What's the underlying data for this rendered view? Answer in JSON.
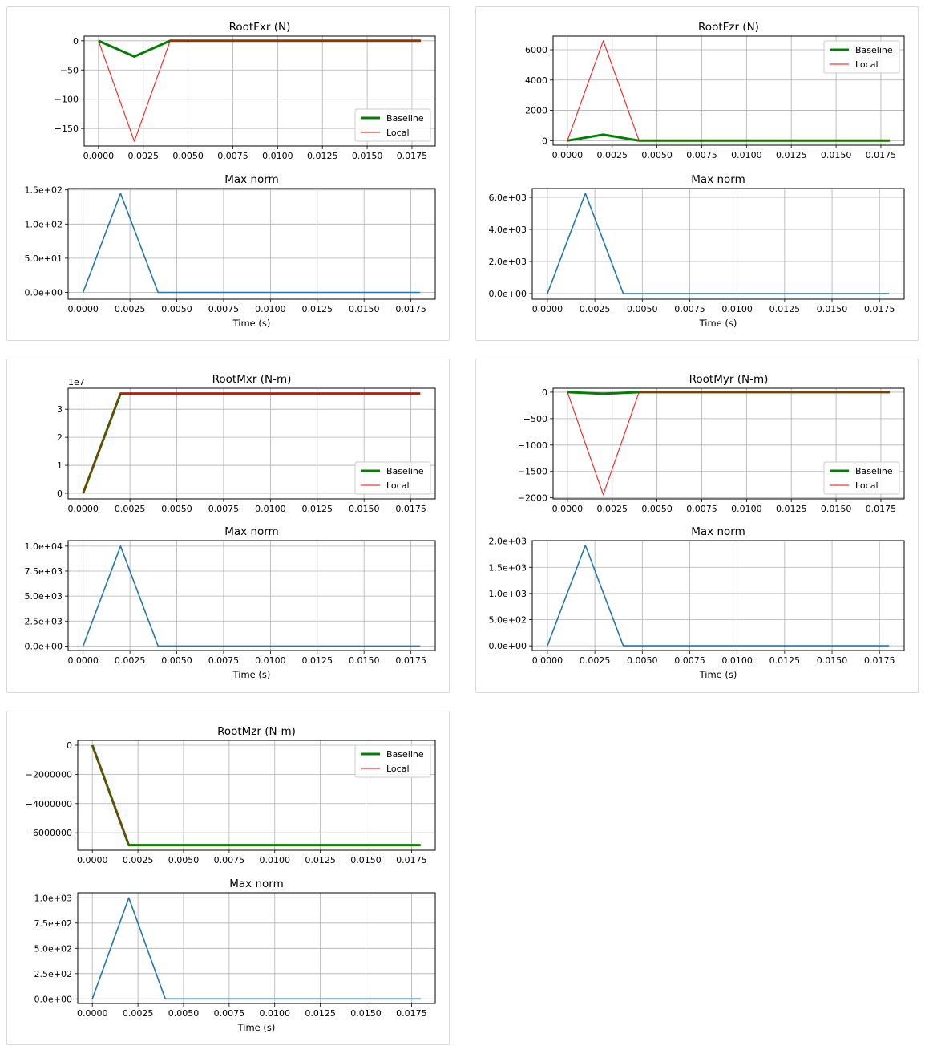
{
  "palette": {
    "baseline": "#008000",
    "local": "#ff0000",
    "maxnorm": "#1f77b4",
    "grid": "#b0b0b0"
  },
  "chart_data": [
    {
      "type": "line",
      "title": "RootFxr (N)",
      "x": [
        0,
        0.002,
        0.004,
        0.006,
        0.008,
        0.01,
        0.012,
        0.014,
        0.016,
        0.018
      ],
      "xlim": [
        -0.0008,
        0.0188
      ],
      "xticks": [
        "0.0000",
        "0.0025",
        "0.0050",
        "0.0075",
        "0.0100",
        "0.0125",
        "0.0150",
        "0.0175"
      ],
      "ylim": [
        -180,
        8
      ],
      "yticks": [
        "0",
        "−50",
        "−100",
        "−150"
      ],
      "ytick_values": [
        0,
        -50,
        -100,
        -150
      ],
      "offset_text": "",
      "legend": {
        "loc": "lower-right",
        "labels": [
          "Baseline",
          "Local"
        ]
      },
      "series": [
        {
          "name": "Baseline",
          "values": [
            0,
            -27,
            0,
            0,
            0,
            0,
            0,
            0,
            0,
            0
          ]
        },
        {
          "name": "Local",
          "values": [
            0,
            -172,
            0,
            0,
            0,
            0,
            0,
            0,
            0,
            0
          ]
        }
      ],
      "norm": {
        "title": "Max norm",
        "xlabel": "Time (s)",
        "ylim": [
          -10,
          152
        ],
        "yticks": [
          "0.0e+00",
          "5.0e+01",
          "1.0e+02",
          "1.5e+02"
        ],
        "ytick_values": [
          0,
          50,
          100,
          150
        ],
        "values": [
          0,
          145,
          0,
          0,
          0,
          0,
          0,
          0,
          0,
          0
        ]
      }
    },
    {
      "type": "line",
      "title": "RootFzr (N)",
      "x": [
        0,
        0.002,
        0.004,
        0.006,
        0.008,
        0.01,
        0.012,
        0.014,
        0.016,
        0.018
      ],
      "xlim": [
        -0.0008,
        0.0188
      ],
      "xticks": [
        "0.0000",
        "0.0025",
        "0.0050",
        "0.0075",
        "0.0100",
        "0.0125",
        "0.0150",
        "0.0175"
      ],
      "ylim": [
        -300,
        6900
      ],
      "yticks": [
        "0",
        "2000",
        "4000",
        "6000"
      ],
      "ytick_values": [
        0,
        2000,
        4000,
        6000
      ],
      "offset_text": "",
      "legend": {
        "loc": "upper-right",
        "labels": [
          "Baseline",
          "Local"
        ]
      },
      "series": [
        {
          "name": "Baseline",
          "values": [
            0,
            400,
            0,
            0,
            0,
            0,
            0,
            0,
            0,
            0
          ]
        },
        {
          "name": "Local",
          "values": [
            0,
            6600,
            0,
            0,
            0,
            0,
            0,
            0,
            0,
            0
          ]
        }
      ],
      "norm": {
        "title": "Max norm",
        "xlabel": "Time (s)",
        "ylim": [
          -350,
          6550
        ],
        "yticks": [
          "0.0e+00",
          "2.0e+03",
          "4.0e+03",
          "6.0e+03"
        ],
        "ytick_values": [
          0,
          2000,
          4000,
          6000
        ],
        "values": [
          0,
          6250,
          0,
          0,
          0,
          0,
          0,
          0,
          0,
          0
        ]
      }
    },
    {
      "type": "line",
      "title": "RootMxr (N-m)",
      "x": [
        0,
        0.002,
        0.004,
        0.006,
        0.008,
        0.01,
        0.012,
        0.014,
        0.016,
        0.018
      ],
      "xlim": [
        -0.0008,
        0.0188
      ],
      "xticks": [
        "0.0000",
        "0.0025",
        "0.0050",
        "0.0075",
        "0.0100",
        "0.0125",
        "0.0150",
        "0.0175"
      ],
      "ylim": [
        -0.2,
        3.75
      ],
      "yticks": [
        "0",
        "1",
        "2",
        "3"
      ],
      "ytick_values": [
        0,
        1,
        2,
        3
      ],
      "offset_text": "1e7",
      "legend": {
        "loc": "lower-right",
        "labels": [
          "Baseline",
          "Local"
        ]
      },
      "series": [
        {
          "name": "Baseline",
          "values": [
            0,
            3.56,
            3.56,
            3.56,
            3.56,
            3.56,
            3.56,
            3.56,
            3.56,
            3.56
          ]
        },
        {
          "name": "Local",
          "values": [
            0,
            3.56,
            3.56,
            3.56,
            3.56,
            3.56,
            3.56,
            3.56,
            3.56,
            3.56
          ]
        }
      ],
      "norm": {
        "title": "Max norm",
        "xlabel": "Time (s)",
        "ylim": [
          -450,
          10550
        ],
        "yticks": [
          "0.0e+00",
          "2.5e+03",
          "5.0e+03",
          "7.5e+03",
          "1.0e+04"
        ],
        "ytick_values": [
          0,
          2500,
          5000,
          7500,
          10000
        ],
        "values": [
          0,
          10000,
          0,
          0,
          0,
          0,
          0,
          0,
          0,
          0
        ]
      }
    },
    {
      "type": "line",
      "title": "RootMyr (N-m)",
      "x": [
        0,
        0.002,
        0.004,
        0.006,
        0.008,
        0.01,
        0.012,
        0.014,
        0.016,
        0.018
      ],
      "xlim": [
        -0.0008,
        0.0188
      ],
      "xticks": [
        "0.0000",
        "0.0025",
        "0.0050",
        "0.0075",
        "0.0100",
        "0.0125",
        "0.0150",
        "0.0175"
      ],
      "ylim": [
        -2020,
        75
      ],
      "yticks": [
        "0",
        "−500",
        "−1000",
        "−1500",
        "−2000"
      ],
      "ytick_values": [
        0,
        -500,
        -1000,
        -1500,
        -2000
      ],
      "offset_text": "",
      "legend": {
        "loc": "lower-right",
        "labels": [
          "Baseline",
          "Local"
        ]
      },
      "series": [
        {
          "name": "Baseline",
          "values": [
            0,
            -30,
            0,
            0,
            0,
            0,
            0,
            0,
            0,
            0
          ]
        },
        {
          "name": "Local",
          "values": [
            0,
            -1940,
            0,
            0,
            0,
            0,
            0,
            0,
            0,
            0
          ]
        }
      ],
      "norm": {
        "title": "Max norm",
        "xlabel": "Time (s)",
        "ylim": [
          -90,
          2010
        ],
        "yticks": [
          "0.0e+00",
          "5.0e+02",
          "1.0e+03",
          "1.5e+03",
          "2.0e+03"
        ],
        "ytick_values": [
          0,
          500,
          1000,
          1500,
          2000
        ],
        "values": [
          0,
          1920,
          0,
          0,
          0,
          0,
          0,
          0,
          0,
          0
        ]
      }
    },
    {
      "type": "line",
      "title": "RootMzr (N-m)",
      "x": [
        0,
        0.002,
        0.004,
        0.006,
        0.008,
        0.01,
        0.012,
        0.014,
        0.016,
        0.018
      ],
      "xlim": [
        -0.0008,
        0.0188
      ],
      "xticks": [
        "0.0000",
        "0.0025",
        "0.0050",
        "0.0075",
        "0.0100",
        "0.0125",
        "0.0150",
        "0.0175"
      ],
      "ylim": [
        -7200000,
        330000
      ],
      "yticks": [
        "0",
        "−2000000",
        "−4000000",
        "−6000000"
      ],
      "ytick_values": [
        0,
        -2000000,
        -4000000,
        -6000000
      ],
      "offset_text": "",
      "legend": {
        "loc": "upper-right",
        "labels": [
          "Baseline",
          "Local"
        ]
      },
      "series": [
        {
          "name": "Baseline",
          "values": [
            0,
            -6850000,
            -6850000,
            -6850000,
            -6850000,
            -6850000,
            -6850000,
            -6850000,
            -6850000,
            -6850000
          ]
        },
        {
          "name": "Local",
          "values": [
            0,
            -6850000,
            -6850000,
            -6850000,
            -6850000,
            -6850000,
            -6850000,
            -6850000,
            -6850000,
            -6850000
          ]
        }
      ],
      "norm": {
        "title": "Max norm",
        "xlabel": "Time (s)",
        "ylim": [
          -45,
          1050
        ],
        "yticks": [
          "0.0e+00",
          "2.5e+02",
          "5.0e+02",
          "7.5e+02",
          "1.0e+03"
        ],
        "ytick_values": [
          0,
          250,
          500,
          750,
          1000
        ],
        "values": [
          0,
          1000,
          0,
          0,
          0,
          0,
          0,
          0,
          0,
          0
        ]
      }
    }
  ]
}
